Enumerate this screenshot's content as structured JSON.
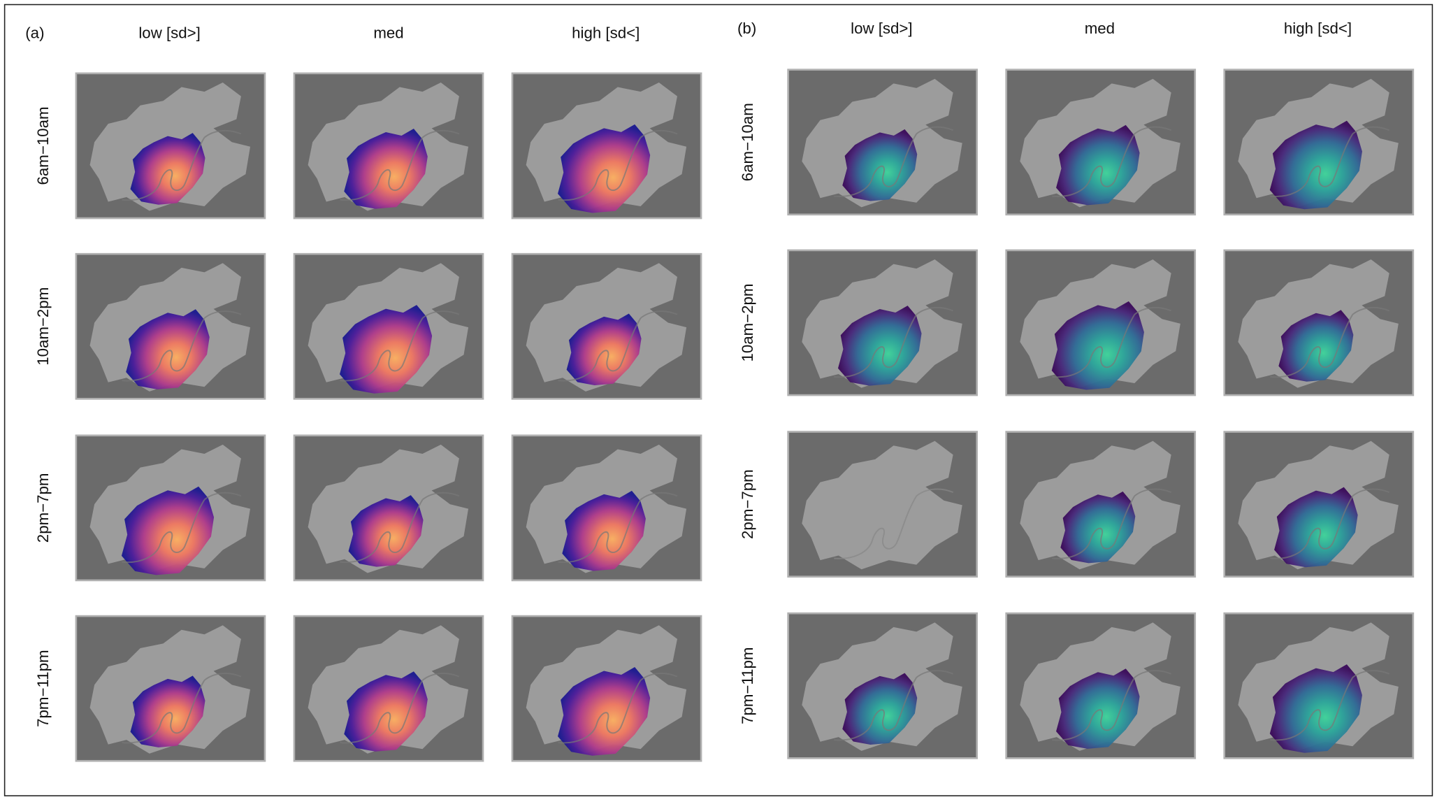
{
  "panels": [
    {
      "label": "(a)",
      "columns": [
        "low [sd>]",
        "med",
        "high [sd<]"
      ],
      "rows": [
        "6am−10am",
        "10am−2pm",
        "2pm−7pm",
        "7pm−11pm"
      ]
    },
    {
      "label": "(b)",
      "columns": [
        "low [sd>]",
        "med",
        "high [sd<]"
      ],
      "rows": [
        "6am−10am",
        "10am−2pm",
        "2pm−7pm",
        "7pm−11pm"
      ]
    }
  ]
}
